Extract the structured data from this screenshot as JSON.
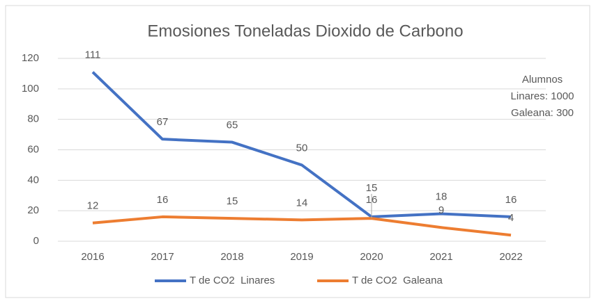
{
  "chart_data": {
    "type": "line",
    "title": "Emosiones Toneladas Dioxido de Carbono",
    "categories": [
      "2016",
      "2017",
      "2018",
      "2019",
      "2020",
      "2021",
      "2022"
    ],
    "series": [
      {
        "name": "T de CO2  Linares",
        "color": "#4472c4",
        "values": [
          111,
          67,
          65,
          50,
          16,
          18,
          16
        ]
      },
      {
        "name": "T de CO2  Galeana",
        "color": "#ed7d31",
        "values": [
          12,
          16,
          15,
          14,
          15,
          9,
          4
        ]
      }
    ],
    "ylim": [
      0,
      120
    ],
    "yticks": [
      0,
      20,
      40,
      60,
      80,
      100,
      120
    ],
    "grid": true,
    "annotation": [
      "Alumnos",
      "Linares: 1000",
      "Galeana: 300"
    ],
    "legend": "bottom"
  }
}
